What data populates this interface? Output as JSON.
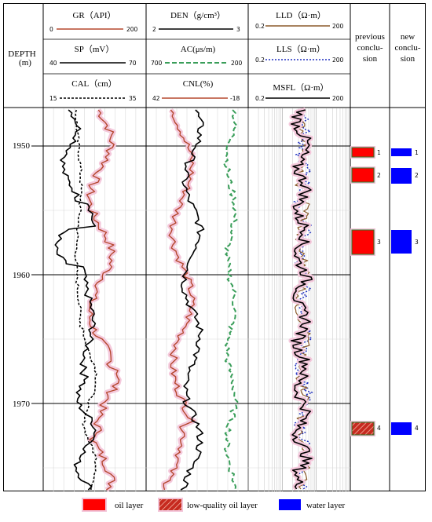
{
  "header": {
    "depth_label_line1": "DEPTH",
    "depth_label_line2": "(m)",
    "gr": {
      "label": "GR（API）",
      "min": "0",
      "max": "200",
      "color": "#b5482f"
    },
    "sp": {
      "label": "SP（mV）",
      "min": "40",
      "max": "70",
      "color": "#000000"
    },
    "cal": {
      "label": "CAL（cm）",
      "min": "15",
      "max": "35",
      "color": "#000000"
    },
    "den": {
      "label": "DEN（g/cm³）",
      "min": "2",
      "max": "3",
      "color": "#000000"
    },
    "ac": {
      "label": "AC(μs/m)",
      "min": "700",
      "max": "200",
      "color": "#3a9e5a"
    },
    "cnl": {
      "label": "CNL(%)",
      "min": "42",
      "max": "-18",
      "color": "#b5482f"
    },
    "lld": {
      "label": "LLD（Ω·m）",
      "min": "0.2",
      "max": "200",
      "color": "#8b5a2b"
    },
    "lls": {
      "label": "LLS（Ω·m）",
      "min": "0.2",
      "max": "200",
      "color": "#1f2fbf"
    },
    "msfl": {
      "label": "MSFL（Ω·m）",
      "min": "0.2",
      "max": "200",
      "color": "#000000"
    },
    "previous_line1": "previous",
    "previous_line2": "conclu-",
    "previous_line3": "sion",
    "new_line1": "new",
    "new_line2": "conclu-",
    "new_line3": "sion"
  },
  "depths": [
    "1950",
    "1960",
    "1970"
  ],
  "previous_conclusion": [
    {
      "num": "1",
      "type": "oil"
    },
    {
      "num": "2",
      "type": "oil"
    },
    {
      "num": "3",
      "type": "oil"
    },
    {
      "num": "4",
      "type": "low-quality oil"
    }
  ],
  "new_conclusion": [
    {
      "num": "1",
      "type": "water"
    },
    {
      "num": "2",
      "type": "water"
    },
    {
      "num": "3",
      "type": "water"
    },
    {
      "num": "4",
      "type": "water"
    }
  ],
  "legend": {
    "oil": "oil layer",
    "low_quality": "low-quality oil layer",
    "water": "water layer"
  },
  "colors": {
    "oil": "#ff0000",
    "low_quality": "#c0392b",
    "water": "#0000ff",
    "highlight": "#f2c4d8"
  }
}
